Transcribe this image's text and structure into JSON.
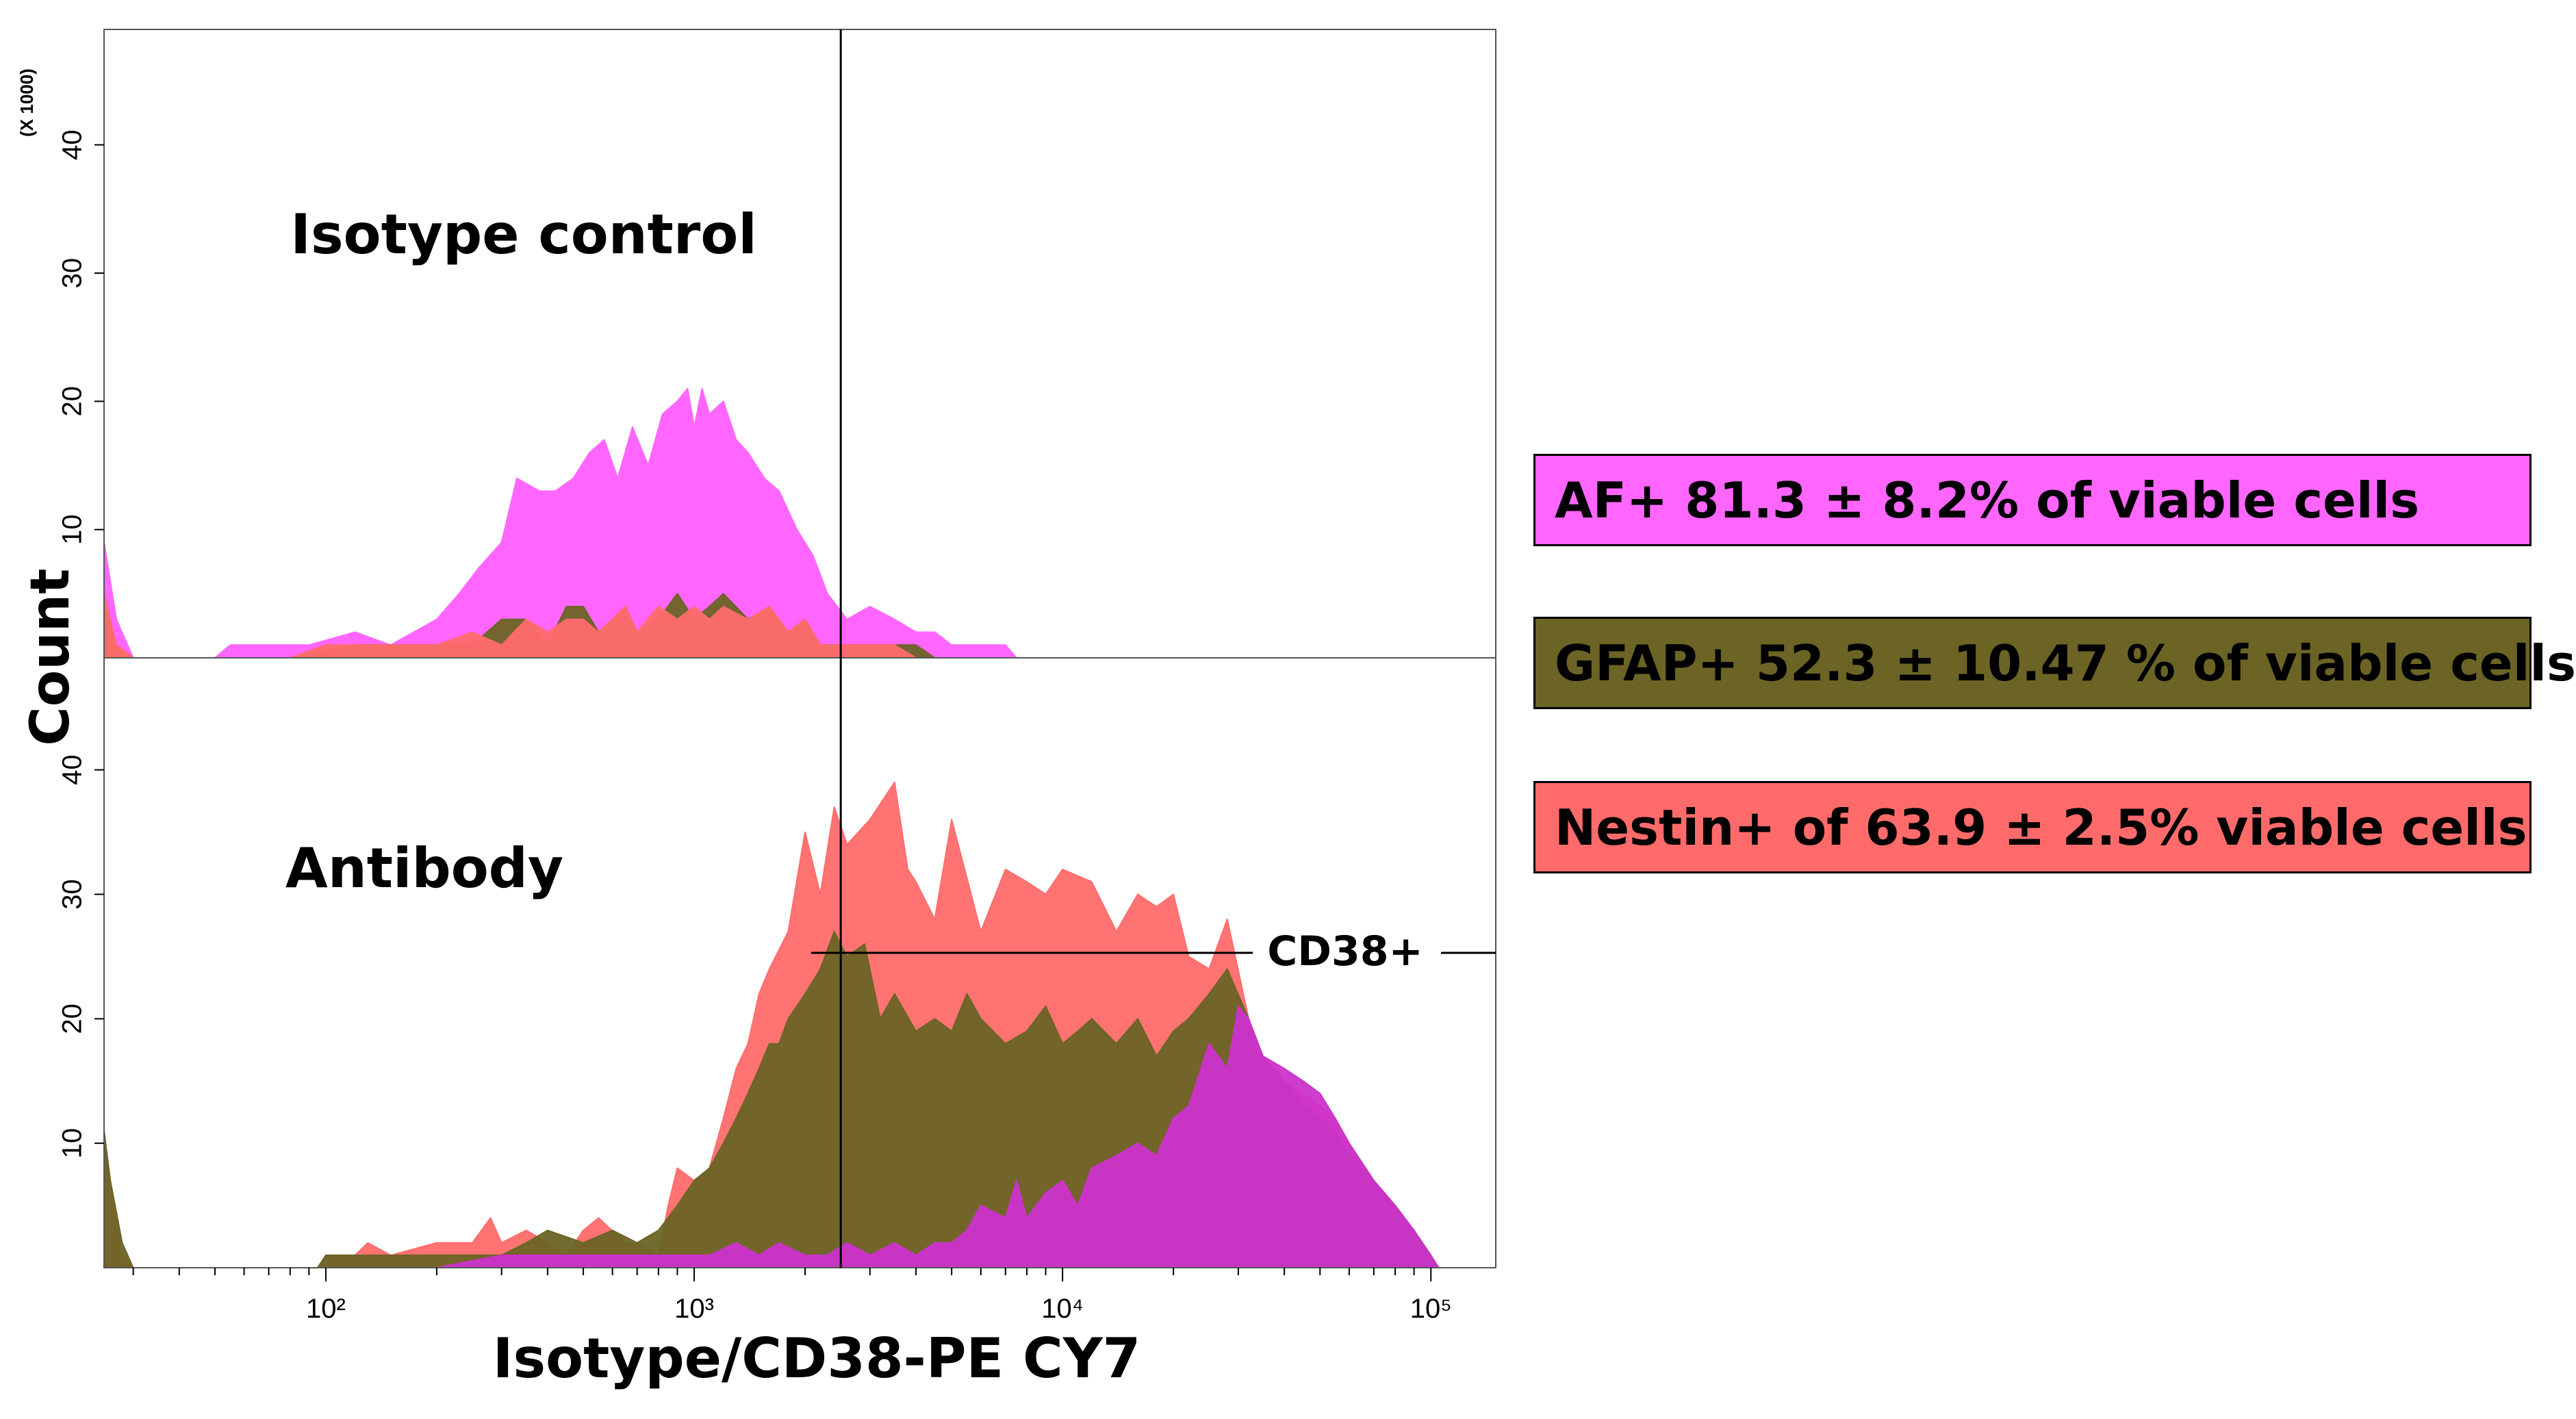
{
  "chart_data": {
    "type": "area",
    "title": "",
    "xlabel": "Isotype/CD38-PE CY7",
    "ylabel": "Count",
    "x_scale": "log10",
    "xlim": [
      25,
      150000
    ],
    "x_ticks": [
      {
        "value": 100,
        "label": "10²"
      },
      {
        "value": 1000,
        "label": "10³"
      },
      {
        "value": 10000,
        "label": "10⁴"
      },
      {
        "value": 100000,
        "label": "10⁵"
      }
    ],
    "y_multiplier_label": "(X 1000)",
    "gate_x": 2500,
    "panels": [
      {
        "name": "Isotype control",
        "ylim": [
          0,
          49
        ],
        "y_ticks": [
          10,
          20,
          30,
          40
        ],
        "series": [
          {
            "name": "AF",
            "color": "#ff66ff",
            "x": [
              25,
              27,
              30,
              50,
              55,
              90,
              120,
              150,
              200,
              230,
              260,
              300,
              330,
              380,
              420,
              470,
              520,
              570,
              620,
              680,
              750,
              820,
              900,
              960,
              1000,
              1050,
              1100,
              1200,
              1300,
              1400,
              1550,
              1700,
              1900,
              2100,
              2300,
              2600,
              3000,
              3500,
              4000,
              4500,
              5000,
              6000,
              7000,
              7500
            ],
            "y": [
              9,
              3,
              0,
              0,
              1,
              1,
              2,
              1,
              3,
              5,
              7,
              9,
              14,
              13,
              13,
              14,
              16,
              17,
              14,
              18,
              15,
              19,
              20,
              21,
              18,
              21,
              19,
              20,
              17,
              16,
              14,
              13,
              10,
              8,
              5,
              3,
              4,
              3,
              2,
              2,
              1,
              1,
              1,
              0
            ]
          },
          {
            "name": "GFAP",
            "color": "#6b6425",
            "x": [
              25,
              27,
              30,
              80,
              120,
              200,
              250,
              300,
              350,
              400,
              450,
              500,
              550,
              600,
              650,
              700,
              800,
              900,
              1000,
              1100,
              1200,
              1400,
              1600,
              1800,
              2000,
              2200,
              2600,
              3000,
              3500,
              4000,
              4500
            ],
            "y": [
              4,
              1,
              0,
              0,
              1,
              1,
              1,
              3,
              3,
              1,
              4,
              4,
              2,
              3,
              4,
              2,
              3,
              5,
              3,
              4,
              5,
              3,
              4,
              2,
              3,
              1,
              1,
              1,
              1,
              1,
              0
            ]
          },
          {
            "name": "Nestin",
            "color": "#ff6b6b",
            "x": [
              25,
              27,
              30,
              80,
              100,
              150,
              200,
              250,
              300,
              350,
              400,
              450,
              500,
              550,
              600,
              650,
              700,
              800,
              900,
              1000,
              1100,
              1200,
              1400,
              1600,
              1800,
              2000,
              2200,
              2600,
              3000,
              3500,
              4000
            ],
            "y": [
              5,
              1,
              0,
              0,
              1,
              1,
              1,
              2,
              1,
              3,
              2,
              3,
              3,
              2,
              3,
              4,
              2,
              4,
              3,
              4,
              3,
              4,
              3,
              4,
              2,
              3,
              1,
              1,
              1,
              1,
              0
            ]
          }
        ]
      },
      {
        "name": "Antibody",
        "ylim": [
          0,
          49
        ],
        "y_ticks": [
          10,
          20,
          30,
          40
        ],
        "series": [
          {
            "name": "Nestin",
            "color": "#ff6b6b",
            "x": [
              25,
              26,
              28,
              30,
              95,
              100,
              120,
              130,
              150,
              200,
              250,
              280,
              300,
              350,
              400,
              450,
              500,
              550,
              650,
              700,
              800,
              850,
              900,
              1000,
              1100,
              1200,
              1300,
              1400,
              1500,
              1600,
              1800,
              2000,
              2200,
              2400,
              2600,
              3000,
              3500,
              3800,
              4000,
              4500,
              5000,
              6000,
              7000,
              8000,
              9000,
              10000,
              12000,
              14000,
              16000,
              18000,
              20000,
              22000,
              25000,
              28000,
              32000,
              35000,
              40000,
              45000,
              50000,
              55000,
              60000,
              70000,
              80000,
              90000,
              100000,
              105000
            ],
            "y": [
              11,
              6,
              1,
              0,
              0,
              1,
              1,
              2,
              1,
              2,
              2,
              4,
              2,
              3,
              2,
              1,
              3,
              4,
              2,
              2,
              1,
              5,
              8,
              7,
              8,
              12,
              16,
              18,
              22,
              24,
              27,
              35,
              30,
              37,
              34,
              36,
              39,
              32,
              31,
              28,
              36,
              27,
              32,
              31,
              30,
              32,
              31,
              27,
              30,
              29,
              30,
              25,
              24,
              28,
              20,
              16,
              15,
              14,
              13,
              12,
              10,
              7,
              5,
              3,
              1,
              0
            ]
          },
          {
            "name": "GFAP",
            "color": "#6b6425",
            "x": [
              25,
              26,
              28,
              30,
              95,
              100,
              130,
              150,
              200,
              250,
              300,
              350,
              400,
              500,
              600,
              700,
              800,
              900,
              1000,
              1100,
              1200,
              1300,
              1400,
              1500,
              1600,
              1700,
              1800,
              2000,
              2200,
              2400,
              2600,
              2900,
              3200,
              3500,
              4000,
              4500,
              5000,
              5500,
              6000,
              7000,
              8000,
              9000,
              10000,
              11000,
              12000,
              14000,
              16000,
              18000,
              20000,
              22000,
              25000,
              28000,
              32000,
              35000,
              40000,
              45000,
              50000,
              55000,
              60000,
              70000,
              80000,
              90000,
              100000,
              105000
            ],
            "y": [
              11,
              7,
              2,
              0,
              0,
              1,
              1,
              1,
              1,
              1,
              1,
              2,
              3,
              2,
              3,
              2,
              3,
              5,
              7,
              8,
              10,
              12,
              14,
              16,
              18,
              18,
              20,
              22,
              24,
              27,
              25,
              26,
              20,
              22,
              19,
              20,
              19,
              22,
              20,
              18,
              19,
              21,
              18,
              19,
              20,
              18,
              20,
              17,
              19,
              20,
              22,
              24,
              20,
              17,
              15,
              13,
              12,
              11,
              9,
              7,
              5,
              3,
              1,
              0
            ]
          },
          {
            "name": "AF",
            "color": "#cc33cc",
            "x": [
              25,
              30,
              150,
              200,
              300,
              500,
              700,
              900,
              1100,
              1300,
              1500,
              1700,
              2000,
              2300,
              2600,
              3000,
              3500,
              4000,
              4500,
              5000,
              5500,
              6000,
              7000,
              7500,
              8000,
              9000,
              10000,
              11000,
              12000,
              14000,
              16000,
              18000,
              20000,
              22000,
              25000,
              28000,
              30000,
              32000,
              35000,
              40000,
              45000,
              50000,
              55000,
              60000,
              70000,
              80000,
              90000,
              100000,
              105000
            ],
            "y": [
              0,
              0,
              0,
              0,
              1,
              1,
              1,
              1,
              1,
              2,
              1,
              2,
              1,
              1,
              2,
              1,
              2,
              1,
              2,
              2,
              3,
              5,
              4,
              7,
              4,
              6,
              7,
              5,
              8,
              9,
              10,
              9,
              12,
              13,
              18,
              16,
              21,
              20,
              17,
              16,
              15,
              14,
              12,
              10,
              7,
              5,
              3,
              1,
              0
            ]
          }
        ]
      }
    ],
    "annotation": "CD38+"
  },
  "panel_labels": {
    "top": "Isotype control",
    "bottom": "Antibody"
  },
  "legend": [
    {
      "text": "AF+ 81.3 ± 8.2% of viable cells",
      "color": "#ff66ff"
    },
    {
      "text": "GFAP+ 52.3 ± 10.47 % of viable cells",
      "color": "#6b6425"
    },
    {
      "text": "Nestin+ of 63.9 ± 2.5% viable cells",
      "color": "#ff6b6b"
    }
  ]
}
